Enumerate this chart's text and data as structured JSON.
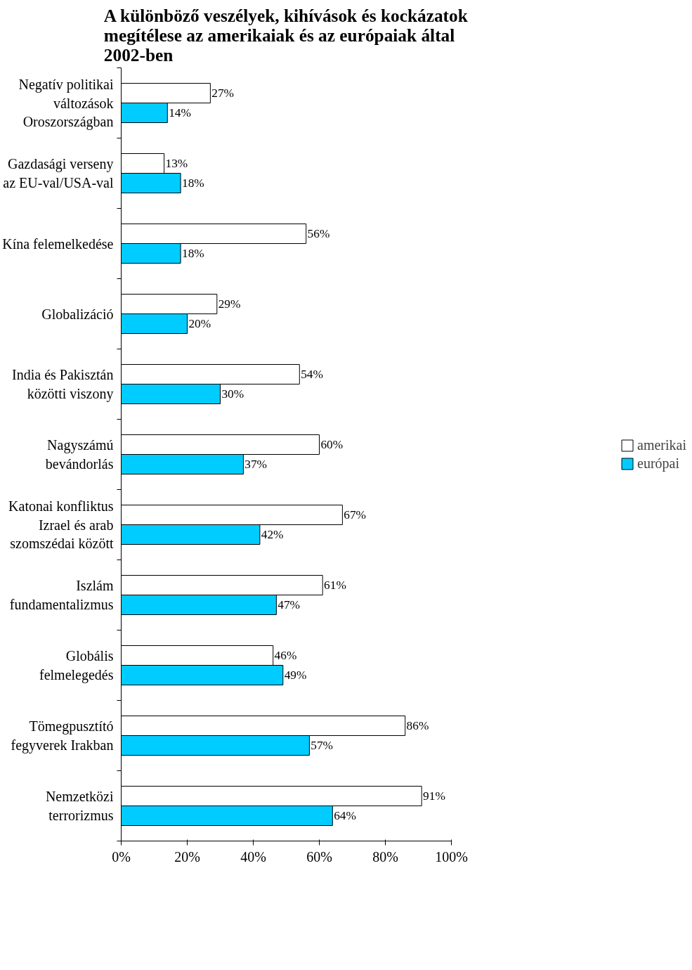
{
  "chart_data": {
    "type": "bar",
    "orientation": "horizontal",
    "title": "A különböző veszélyek, kihívások és kockázatok megítélese az amerikaiak és az európaiak által 2002-ben",
    "categories": [
      "Negatív politikai változások Oroszországban",
      "Gazdasági verseny az EU-val/USA-val",
      "Kína felemelkedése",
      "Globalizáció",
      "India és Pakisztán közötti viszony",
      "Nagyszámú bevándorlás",
      "Katonai konfliktus Izrael és arab szomszédai között",
      "Iszlám fundamentalizmus",
      "Globális felmelegedés",
      "Tömegpusztító fegyverek Irakban",
      "Nemzetközi terrorizmus"
    ],
    "series": [
      {
        "name": "amerikai",
        "color": "#ffffff",
        "values": [
          27,
          13,
          56,
          29,
          54,
          60,
          67,
          61,
          46,
          86,
          91
        ],
        "value_labels": [
          "27%",
          "13%",
          "56%",
          "29%",
          "54%",
          "60%",
          "67%",
          "61%",
          "46%",
          "86%",
          "91%"
        ]
      },
      {
        "name": "európai",
        "color": "#00ccff",
        "values": [
          14,
          18,
          18,
          20,
          30,
          37,
          42,
          47,
          49,
          57,
          64
        ],
        "value_labels": [
          "14%",
          "18%",
          "18%",
          "20%",
          "30%",
          "37%",
          "42%",
          "47%",
          "49%",
          "57%",
          "64%"
        ]
      }
    ],
    "xlim": [
      0,
      100
    ],
    "xticks": [
      {
        "value": 0,
        "label": "0%"
      },
      {
        "value": 20,
        "label": "20%"
      },
      {
        "value": 40,
        "label": "40%"
      },
      {
        "value": 60,
        "label": "60%"
      },
      {
        "value": 80,
        "label": "80%"
      },
      {
        "value": 100,
        "label": "100%"
      }
    ],
    "legend": "right",
    "grid": false
  }
}
